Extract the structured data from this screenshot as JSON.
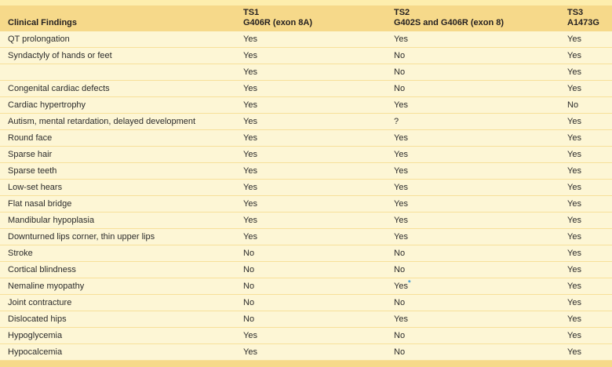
{
  "table": {
    "title": "Clinical findings comparison table",
    "header": {
      "col1": "Clinical Findings",
      "col2_line1": "TS1",
      "col2_line2": "G406R (exon 8A)",
      "col3_line1": "TS2",
      "col3_line2": "G402S and G406R (exon 8)",
      "col4_line1": "TS3",
      "col4_line2": "A1473G"
    },
    "rows": [
      {
        "finding": "QT prolongation",
        "ts1": "Yes",
        "ts2": "Yes",
        "ts2_marker": "",
        "ts3": "Yes"
      },
      {
        "finding": "Syndactyly of hands or feet",
        "ts1": "Yes",
        "ts2": "No",
        "ts2_marker": "",
        "ts3": "Yes"
      },
      {
        "finding": "",
        "ts1": "Yes",
        "ts2": "No",
        "ts2_marker": "",
        "ts3": "Yes"
      },
      {
        "finding": "Congenital cardiac defects",
        "ts1": "Yes",
        "ts2": "No",
        "ts2_marker": "",
        "ts3": "Yes"
      },
      {
        "finding": "Cardiac hypertrophy",
        "ts1": "Yes",
        "ts2": "Yes",
        "ts2_marker": "",
        "ts3": "No"
      },
      {
        "finding": "Autism, mental retardation, delayed development",
        "ts1": "Yes",
        "ts2": "?",
        "ts2_marker": "",
        "ts3": "Yes"
      },
      {
        "finding": "Round face",
        "ts1": "Yes",
        "ts2": "Yes",
        "ts2_marker": "",
        "ts3": "Yes"
      },
      {
        "finding": "Sparse hair",
        "ts1": "Yes",
        "ts2": "Yes",
        "ts2_marker": "",
        "ts3": "Yes"
      },
      {
        "finding": "Sparse teeth",
        "ts1": "Yes",
        "ts2": "Yes",
        "ts2_marker": "",
        "ts3": "Yes"
      },
      {
        "finding": "Low-set hears",
        "ts1": "Yes",
        "ts2": "Yes",
        "ts2_marker": "",
        "ts3": "Yes"
      },
      {
        "finding": "Flat nasal bridge",
        "ts1": "Yes",
        "ts2": "Yes",
        "ts2_marker": "",
        "ts3": "Yes"
      },
      {
        "finding": "Mandibular hypoplasia",
        "ts1": "Yes",
        "ts2": "Yes",
        "ts2_marker": "",
        "ts3": "Yes"
      },
      {
        "finding": "Downturned lips corner, thin upper lips",
        "ts1": "Yes",
        "ts2": "Yes",
        "ts2_marker": "",
        "ts3": "Yes"
      },
      {
        "finding": "Stroke",
        "ts1": "No",
        "ts2": "No",
        "ts2_marker": "",
        "ts3": "Yes"
      },
      {
        "finding": "Cortical blindness",
        "ts1": "No",
        "ts2": "No",
        "ts2_marker": "",
        "ts3": "Yes"
      },
      {
        "finding": "Nemaline myopathy",
        "ts1": "No",
        "ts2": "Yes",
        "ts2_marker": "*",
        "ts3": "Yes"
      },
      {
        "finding": "Joint contracture",
        "ts1": "No",
        "ts2": "No",
        "ts2_marker": "",
        "ts3": "Yes"
      },
      {
        "finding": "Dislocated hips",
        "ts1": "No",
        "ts2": "Yes",
        "ts2_marker": "",
        "ts3": "Yes"
      },
      {
        "finding": "Hypoglycemia",
        "ts1": "Yes",
        "ts2": "No",
        "ts2_marker": "",
        "ts3": "Yes"
      },
      {
        "finding": "Hypocalcemia",
        "ts1": "Yes",
        "ts2": "No",
        "ts2_marker": "",
        "ts3": "Yes"
      }
    ],
    "colors": {
      "header_gold": "#f6d98a",
      "top_strip": "#fdeeae",
      "row_cream": "#fdf6d5",
      "separator": "#f7e09a",
      "bottom_strip": "#f6d98a",
      "header_text": "#231f20",
      "body_text": "#2b2b2b",
      "asterisk_blue": "#3a99cf"
    }
  }
}
